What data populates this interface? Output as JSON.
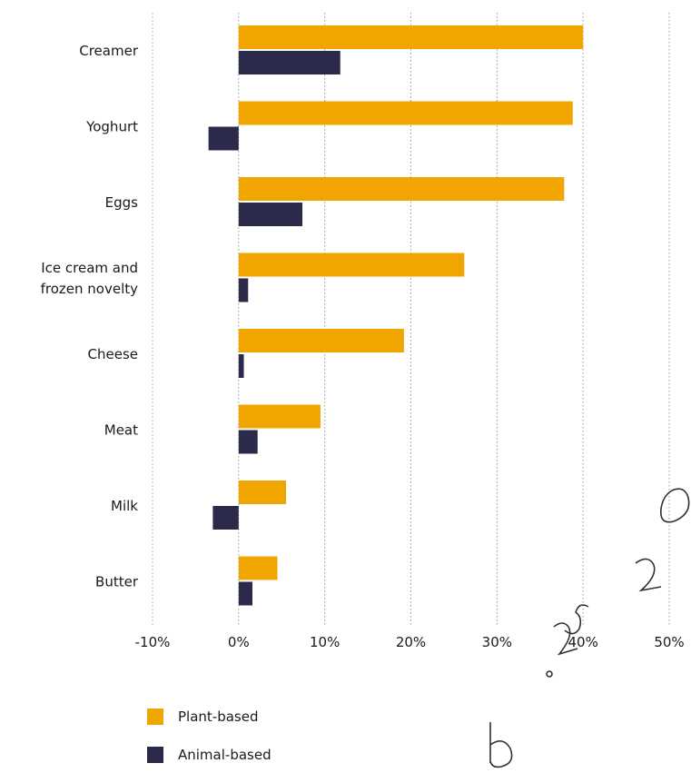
{
  "chart_data": {
    "type": "bar",
    "orientation": "horizontal",
    "categories": [
      "Creamer",
      "Yoghurt",
      "Eggs",
      "Ice cream and\nfrozen novelty",
      "Cheese",
      "Meat",
      "Milk",
      "Butter"
    ],
    "series": [
      {
        "name": "Plant-based",
        "color": "#f0a500",
        "values": [
          40,
          38.8,
          37.8,
          26.2,
          19.2,
          9.5,
          5.5,
          4.5
        ]
      },
      {
        "name": "Animal-based",
        "color": "#2b2a4a",
        "values": [
          11.8,
          -3.5,
          7.4,
          1.1,
          0.6,
          2.2,
          -3.0,
          1.6
        ]
      }
    ],
    "xlim": [
      -10,
      50
    ],
    "xticks": [
      -10,
      0,
      10,
      20,
      30,
      40,
      50
    ],
    "xtick_labels": [
      "-10%",
      "0%",
      "10%",
      "20%",
      "30%",
      "40%",
      "50%"
    ],
    "grid": "vertical dotted",
    "legend_position": "bottom-left"
  },
  "legend": {
    "items": [
      {
        "label": "Plant-based",
        "color": "#f0a500"
      },
      {
        "label": "Animal-based",
        "color": "#2b2a4a"
      }
    ]
  }
}
